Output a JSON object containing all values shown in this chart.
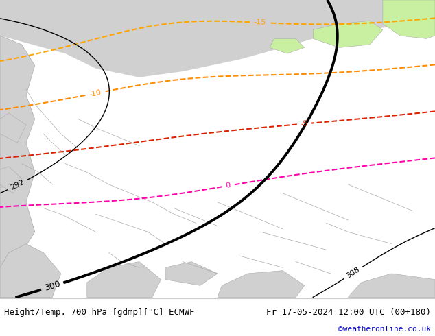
{
  "title_left": "Height/Temp. 700 hPa [gdmp][°C] ECMWF",
  "title_right": "Fr 17-05-2024 12:00 UTC (00+180)",
  "credit": "©weatheronline.co.uk",
  "green_bg": "#c8f0a0",
  "light_gray": "#d0d0d0",
  "border_color": "#aaaaaa",
  "footer_bg": "#ffffff",
  "label_fontsize": 8,
  "title_fontsize": 9,
  "credit_color": "#0000cc"
}
